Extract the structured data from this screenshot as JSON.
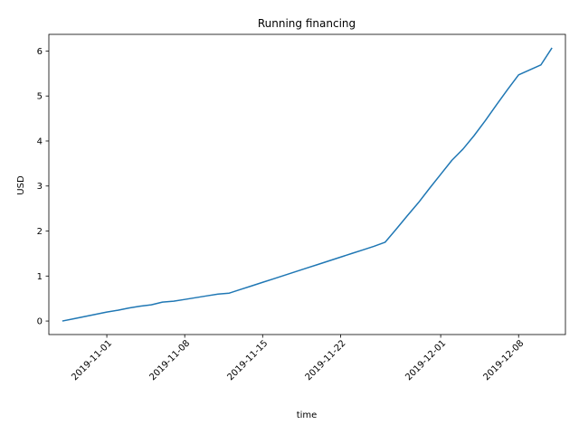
{
  "chart_data": {
    "type": "line",
    "title": "Running financing",
    "xlabel": "time",
    "ylabel": "USD",
    "x_tick_labels": [
      "2019-11-01",
      "2019-11-08",
      "2019-11-15",
      "2019-11-22",
      "2019-12-01",
      "2019-12-08"
    ],
    "y_tick_labels": [
      "0",
      "1",
      "2",
      "3",
      "4",
      "5",
      "6"
    ],
    "xlim": [
      "2019-10-26T19:00",
      "2019-12-12T05:00"
    ],
    "ylim": [
      -0.3,
      6.37
    ],
    "grid": false,
    "color": "#1f77b4",
    "x": [
      "2019-10-28",
      "2019-10-29",
      "2019-10-30",
      "2019-10-31",
      "2019-11-01",
      "2019-11-02",
      "2019-11-03",
      "2019-11-04",
      "2019-11-05",
      "2019-11-06",
      "2019-11-07",
      "2019-11-08",
      "2019-11-09",
      "2019-11-10",
      "2019-11-11",
      "2019-11-12",
      "2019-11-13",
      "2019-11-14",
      "2019-11-15",
      "2019-11-16",
      "2019-11-17",
      "2019-11-18",
      "2019-11-19",
      "2019-11-20",
      "2019-11-21",
      "2019-11-22",
      "2019-11-23",
      "2019-11-24",
      "2019-11-25",
      "2019-11-26",
      "2019-11-27",
      "2019-11-28",
      "2019-11-29",
      "2019-11-30",
      "2019-12-01",
      "2019-12-02",
      "2019-12-03",
      "2019-12-04",
      "2019-12-05",
      "2019-12-06",
      "2019-12-07",
      "2019-12-08",
      "2019-12-09",
      "2019-12-10",
      "2019-12-11"
    ],
    "y": [
      0.0,
      0.05,
      0.1,
      0.15,
      0.2,
      0.24,
      0.29,
      0.33,
      0.36,
      0.42,
      0.44,
      0.48,
      0.52,
      0.56,
      0.6,
      0.62,
      0.7,
      0.78,
      0.86,
      0.94,
      1.02,
      1.1,
      1.18,
      1.26,
      1.34,
      1.42,
      1.5,
      1.58,
      1.66,
      1.75,
      2.04,
      2.34,
      2.63,
      2.95,
      3.26,
      3.57,
      3.82,
      4.12,
      4.45,
      4.8,
      5.14,
      5.47,
      5.58,
      5.69,
      6.07
    ]
  }
}
